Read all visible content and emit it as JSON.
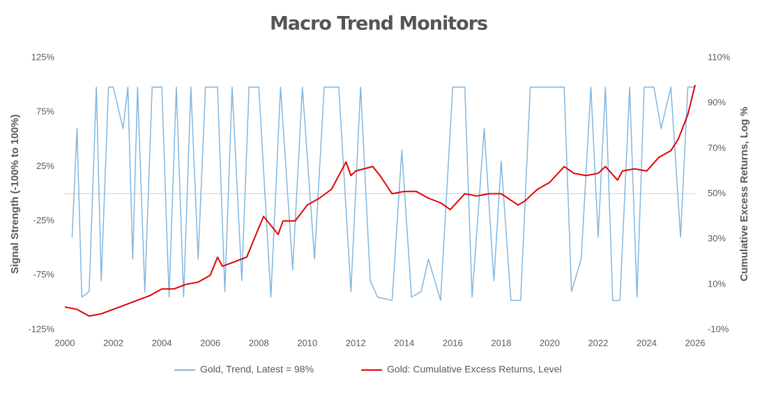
{
  "chart_data": {
    "type": "line",
    "title": "Macro Trend Monitors",
    "y_label": "Signal Strength (-100% to 100%)",
    "y2_label": "Cumulative Excess Returns, Log %",
    "xlim": [
      2000,
      2026
    ],
    "xticks": [
      2000,
      2002,
      2004,
      2006,
      2008,
      2010,
      2012,
      2014,
      2016,
      2018,
      2020,
      2022,
      2024,
      2026
    ],
    "ylim": [
      -125,
      125
    ],
    "yticks": [
      {
        "value": -125,
        "label": "-125%"
      },
      {
        "value": -75,
        "label": "-75%"
      },
      {
        "value": -25,
        "label": "-25%"
      },
      {
        "value": 25,
        "label": "25%"
      },
      {
        "value": 75,
        "label": "75%"
      },
      {
        "value": 125,
        "label": "125%"
      }
    ],
    "y2lim": [
      -10,
      110
    ],
    "y2ticks": [
      {
        "value": -10,
        "label": "-10%"
      },
      {
        "value": 10,
        "label": "10%"
      },
      {
        "value": 30,
        "label": "30%"
      },
      {
        "value": 50,
        "label": "50%"
      },
      {
        "value": 70,
        "label": "70%"
      },
      {
        "value": 90,
        "label": "90%"
      },
      {
        "value": 110,
        "label": "110%"
      }
    ],
    "legend": "bottom",
    "series": [
      {
        "name": "Gold, Trend, Latest = 98%",
        "color": "#7fb6e0",
        "axis": "y",
        "x": [
          2000.3,
          2000.5,
          2000.7,
          2001,
          2001.3,
          2001.5,
          2001.8,
          2002,
          2002.4,
          2002.6,
          2002.8,
          2003,
          2003.3,
          2003.6,
          2004,
          2004.3,
          2004.6,
          2004.9,
          2005.2,
          2005.5,
          2005.8,
          2006.3,
          2006.6,
          2006.9,
          2007.3,
          2007.6,
          2008,
          2008.5,
          2008.9,
          2009.4,
          2009.8,
          2010.3,
          2010.7,
          2011.3,
          2011.8,
          2012.2,
          2012.6,
          2012.9,
          2013.5,
          2013.9,
          2014.3,
          2014.7,
          2015,
          2015.5,
          2016,
          2016.5,
          2016.8,
          2017.3,
          2017.7,
          2018,
          2018.4,
          2018.8,
          2019.2,
          2019.7,
          2020.2,
          2020.6,
          2020.9,
          2021.3,
          2021.7,
          2022,
          2022.3,
          2022.6,
          2022.9,
          2023.3,
          2023.6,
          2023.9,
          2024.3,
          2024.6,
          2025,
          2025.4,
          2025.7,
          2026
        ],
        "values": [
          -40,
          60,
          -95,
          -90,
          98,
          -80,
          98,
          98,
          60,
          98,
          -60,
          98,
          -90,
          98,
          98,
          -95,
          98,
          -95,
          98,
          -60,
          98,
          98,
          -90,
          98,
          -80,
          98,
          98,
          -95,
          98,
          -70,
          98,
          -60,
          98,
          98,
          -90,
          98,
          -80,
          -95,
          -98,
          40,
          -95,
          -90,
          -60,
          -98,
          98,
          98,
          -95,
          60,
          -80,
          30,
          -98,
          -98,
          98,
          98,
          98,
          98,
          -90,
          -60,
          98,
          -40,
          98,
          -98,
          -98,
          98,
          -95,
          98,
          98,
          60,
          98,
          -40,
          98,
          98
        ]
      },
      {
        "name": "Gold: Cumulative Excess Returns, Level",
        "color": "#e00000",
        "axis": "y2",
        "x": [
          2000,
          2000.5,
          2001,
          2001.5,
          2002,
          2002.5,
          2003,
          2003.5,
          2004,
          2004.5,
          2005,
          2005.5,
          2006,
          2006.3,
          2006.5,
          2007,
          2007.5,
          2008,
          2008.2,
          2008.8,
          2009,
          2009.5,
          2010,
          2010.5,
          2011,
          2011.6,
          2011.8,
          2012,
          2012.7,
          2013,
          2013.5,
          2014,
          2014.5,
          2015,
          2015.5,
          2015.9,
          2016.5,
          2017,
          2017.5,
          2018,
          2018.7,
          2019,
          2019.5,
          2020,
          2020.6,
          2021,
          2021.5,
          2022,
          2022.3,
          2022.8,
          2023,
          2023.5,
          2024,
          2024.5,
          2025,
          2025.3,
          2025.7,
          2026
        ],
        "values": [
          0,
          -1,
          -4,
          -3,
          -1,
          1,
          3,
          5,
          8,
          8,
          10,
          11,
          14,
          22,
          18,
          20,
          22,
          35,
          40,
          32,
          38,
          38,
          45,
          48,
          52,
          64,
          58,
          60,
          62,
          58,
          50,
          51,
          51,
          48,
          46,
          43,
          50,
          49,
          50,
          50,
          45,
          47,
          52,
          55,
          62,
          59,
          58,
          59,
          62,
          56,
          60,
          61,
          60,
          66,
          69,
          74,
          85,
          98
        ]
      }
    ]
  }
}
